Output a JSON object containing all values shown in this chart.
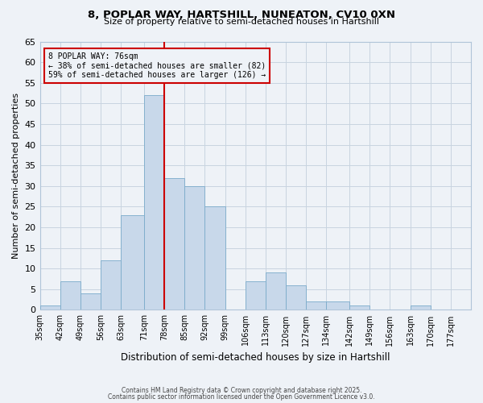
{
  "title_line1": "8, POPLAR WAY, HARTSHILL, NUNEATON, CV10 0XN",
  "title_line2": "Size of property relative to semi-detached houses in Hartshill",
  "xlabel": "Distribution of semi-detached houses by size in Hartshill",
  "ylabel": "Number of semi-detached properties",
  "bin_labels": [
    "35sqm",
    "42sqm",
    "49sqm",
    "56sqm",
    "63sqm",
    "71sqm",
    "78sqm",
    "85sqm",
    "92sqm",
    "99sqm",
    "106sqm",
    "113sqm",
    "120sqm",
    "127sqm",
    "134sqm",
    "142sqm",
    "149sqm",
    "156sqm",
    "163sqm",
    "170sqm",
    "177sqm"
  ],
  "bin_edges": [
    35,
    42,
    49,
    56,
    63,
    71,
    78,
    85,
    92,
    99,
    106,
    113,
    120,
    127,
    134,
    142,
    149,
    156,
    163,
    170,
    177
  ],
  "bar_heights": [
    1,
    7,
    4,
    12,
    23,
    52,
    32,
    30,
    25,
    0,
    7,
    9,
    6,
    2,
    2,
    1,
    0,
    0,
    1,
    0,
    0
  ],
  "bar_color": "#c8d8ea",
  "bar_edge_color": "#7aaaca",
  "property_line_x": 78,
  "pct_smaller": 38,
  "n_smaller": 82,
  "pct_larger": 59,
  "n_larger": 126,
  "line_color": "#cc0000",
  "box_edge_color": "#cc0000",
  "ylim": [
    0,
    65
  ],
  "yticks": [
    0,
    5,
    10,
    15,
    20,
    25,
    30,
    35,
    40,
    45,
    50,
    55,
    60,
    65
  ],
  "grid_color": "#c8d4e0",
  "background_color": "#eef2f7",
  "footer_line1": "Contains HM Land Registry data © Crown copyright and database right 2025.",
  "footer_line2": "Contains public sector information licensed under the Open Government Licence v3.0."
}
